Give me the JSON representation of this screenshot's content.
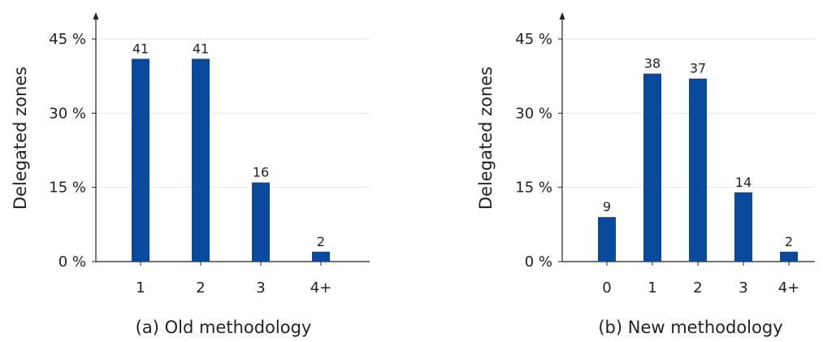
{
  "colors": {
    "bar": "#0a4a9c",
    "axis": "#222222",
    "grid": "#e6e6e6"
  },
  "chart_data": [
    {
      "type": "bar",
      "caption": "(a) Old methodology",
      "ylabel": "Delegated zones",
      "categories": [
        "1",
        "2",
        "3",
        "4+"
      ],
      "values": [
        41,
        41,
        16,
        2
      ],
      "data_labels": [
        "41",
        "41",
        "16",
        "2"
      ],
      "yticks": [
        0,
        15,
        30,
        45
      ],
      "ytick_labels": [
        "0 %",
        "15 %",
        "30 %",
        "45 %"
      ],
      "ylim": [
        0,
        45
      ],
      "grid": true
    },
    {
      "type": "bar",
      "caption": "(b) New methodology",
      "ylabel": "Delegated zones",
      "categories": [
        "0",
        "1",
        "2",
        "3",
        "4+"
      ],
      "values": [
        9,
        38,
        37,
        14,
        2
      ],
      "data_labels": [
        "9",
        "38",
        "37",
        "14",
        "2"
      ],
      "yticks": [
        0,
        15,
        30,
        45
      ],
      "ytick_labels": [
        "0 %",
        "15 %",
        "30 %",
        "45 %"
      ],
      "ylim": [
        0,
        45
      ],
      "grid": true
    }
  ]
}
